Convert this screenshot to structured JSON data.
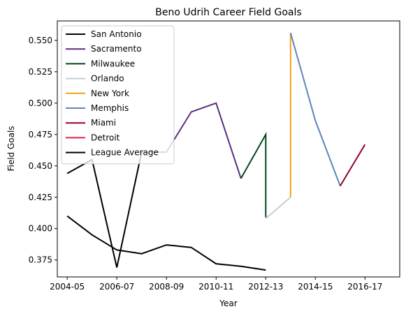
{
  "chart_data": {
    "type": "line",
    "title": "Beno Udrih Career Field Goals",
    "xlabel": "Year",
    "ylabel": "Field Goals",
    "x_ticks": [
      "2004-05",
      "2006-07",
      "2008-09",
      "2010-11",
      "2012-13",
      "2014-15",
      "2016-17"
    ],
    "y_ticks": [
      "0.375",
      "0.400",
      "0.425",
      "0.450",
      "0.475",
      "0.500",
      "0.525",
      "0.550"
    ],
    "xlim": [
      2003.6,
      2017.4
    ],
    "ylim": [
      0.3615,
      0.5655
    ],
    "grid": false,
    "legend_position": "top-left",
    "series": [
      {
        "name": "San Antonio",
        "color": "#000000",
        "x": [
          2004,
          2005,
          2006,
          2007
        ],
        "y": [
          0.444,
          0.455,
          0.369,
          0.461
        ]
      },
      {
        "name": "Sacramento",
        "color": "#5a2d82",
        "x": [
          2007,
          2008,
          2009,
          2010,
          2011
        ],
        "y": [
          0.461,
          0.461,
          0.493,
          0.5,
          0.44
        ]
      },
      {
        "name": "Milwaukee",
        "color": "#00471b",
        "x": [
          2011,
          2012,
          2012
        ],
        "y": [
          0.44,
          0.475,
          0.409
        ]
      },
      {
        "name": "Orlando",
        "color": "#c4ced4",
        "x": [
          2012,
          2013
        ],
        "y": [
          0.408,
          0.425
        ]
      },
      {
        "name": "New York",
        "color": "#f5a020",
        "x": [
          2013,
          2013
        ],
        "y": [
          0.425,
          0.556
        ]
      },
      {
        "name": "Memphis",
        "color": "#5d86b8",
        "x": [
          2013,
          2014,
          2015
        ],
        "y": [
          0.556,
          0.486,
          0.434
        ]
      },
      {
        "name": "Miami",
        "color": "#98002e",
        "x": [
          2015,
          2016
        ],
        "y": [
          0.434,
          0.467
        ]
      },
      {
        "name": "Detroit",
        "color": "#e0223f",
        "x": [],
        "y": []
      },
      {
        "name": "League Average",
        "color": "#000000",
        "x": [
          2004,
          2005,
          2006,
          2007,
          2008,
          2009,
          2010,
          2011,
          2012
        ],
        "y": [
          0.41,
          0.395,
          0.383,
          0.38,
          0.387,
          0.385,
          0.372,
          0.37,
          0.367
        ]
      }
    ]
  }
}
